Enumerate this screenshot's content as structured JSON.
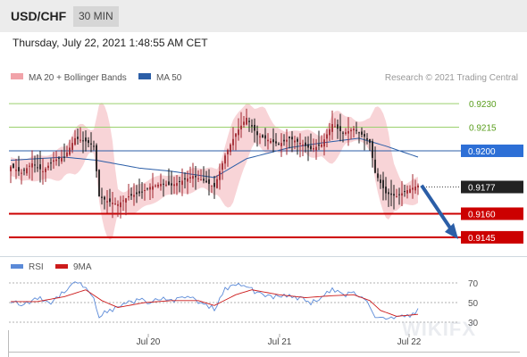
{
  "header": {
    "symbol": "USD/CHF",
    "timeframe": "30 MIN"
  },
  "timestamp": "Thursday, July 22, 2021 1:48:55 AM CET",
  "legend": {
    "bb_label": "MA 20 + Bollinger Bands",
    "ma50_label": "MA 50",
    "copyright": "Research © 2021 Trading Central",
    "rsi_label": "RSI",
    "ma9_label": "9MA"
  },
  "watermark": "WIKIFX",
  "colors": {
    "bullish_candle": "#a0252e",
    "bearish_candle": "#1a1a1a",
    "bollinger_fill": "#f6c6c9",
    "ma50": "#2b5ea7",
    "target_line": "#cc0000",
    "resistance_line": "#9bd16e",
    "resistance_label": "#5a9e1d",
    "pivot": "#2d6fd6",
    "current_price_bg": "#222222",
    "arrow": "#2b5ea7",
    "rsi": "#5b8ad8",
    "rsi_ma": "#cc1a1a"
  },
  "chart_data": [
    {
      "type": "candlestick",
      "x_labels": [
        "Jul 20",
        "Jul 21",
        "Jul 22"
      ],
      "y_range": [
        0.9137,
        0.9238
      ],
      "current_price": 0.9177,
      "levels": [
        {
          "value": 0.923,
          "label": "0.9230",
          "kind": "resistance"
        },
        {
          "value": 0.9215,
          "label": "0.9215",
          "kind": "resistance"
        },
        {
          "value": 0.92,
          "label": "0.9200",
          "kind": "pivot"
        },
        {
          "value": 0.9177,
          "label": "0.9177",
          "kind": "current"
        },
        {
          "value": 0.916,
          "label": "0.9160",
          "kind": "target"
        },
        {
          "value": 0.9145,
          "label": "0.9145",
          "kind": "target"
        }
      ],
      "anchors": [
        [
          0,
          0.919
        ],
        [
          4,
          0.9186
        ],
        [
          8,
          0.9192
        ],
        [
          12,
          0.9187
        ],
        [
          16,
          0.9194
        ],
        [
          20,
          0.9196
        ],
        [
          24,
          0.9208
        ],
        [
          28,
          0.9206
        ],
        [
          31,
          0.9203
        ],
        [
          33,
          0.9171
        ],
        [
          36,
          0.9168
        ],
        [
          40,
          0.9166
        ],
        [
          44,
          0.9171
        ],
        [
          48,
          0.9173
        ],
        [
          52,
          0.9177
        ],
        [
          56,
          0.9179
        ],
        [
          60,
          0.9178
        ],
        [
          64,
          0.9181
        ],
        [
          68,
          0.9184
        ],
        [
          72,
          0.9181
        ],
        [
          76,
          0.9177
        ],
        [
          80,
          0.9197
        ],
        [
          84,
          0.9211
        ],
        [
          88,
          0.9221
        ],
        [
          92,
          0.921
        ],
        [
          96,
          0.9207
        ],
        [
          100,
          0.9204
        ],
        [
          104,
          0.9208
        ],
        [
          108,
          0.9205
        ],
        [
          112,
          0.9201
        ],
        [
          116,
          0.9204
        ],
        [
          120,
          0.9217
        ],
        [
          124,
          0.9211
        ],
        [
          128,
          0.9214
        ],
        [
          132,
          0.9209
        ],
        [
          134,
          0.9205
        ],
        [
          136,
          0.9186
        ],
        [
          140,
          0.9173
        ],
        [
          144,
          0.9171
        ],
        [
          148,
          0.9175
        ],
        [
          152,
          0.9178
        ]
      ],
      "ma50": [
        [
          0,
          0.9194
        ],
        [
          20,
          0.9196
        ],
        [
          32,
          0.9194
        ],
        [
          48,
          0.9189
        ],
        [
          60,
          0.9187
        ],
        [
          76,
          0.9183
        ],
        [
          88,
          0.9195
        ],
        [
          104,
          0.9202
        ],
        [
          116,
          0.9205
        ],
        [
          130,
          0.9208
        ],
        [
          140,
          0.9203
        ],
        [
          152,
          0.9196
        ]
      ],
      "forecast_arrow": {
        "from": 0.9178,
        "to": 0.9145
      }
    },
    {
      "type": "line",
      "title": "RSI",
      "y_ticks": [
        70,
        50,
        30
      ],
      "y_range": [
        20,
        80
      ],
      "rsi_anchors": [
        [
          0,
          52
        ],
        [
          5,
          47
        ],
        [
          10,
          55
        ],
        [
          15,
          50
        ],
        [
          20,
          62
        ],
        [
          24,
          72
        ],
        [
          28,
          65
        ],
        [
          31,
          55
        ],
        [
          33,
          35
        ],
        [
          36,
          42
        ],
        [
          40,
          44
        ],
        [
          44,
          50
        ],
        [
          48,
          53
        ],
        [
          52,
          49
        ],
        [
          56,
          55
        ],
        [
          60,
          52
        ],
        [
          64,
          55
        ],
        [
          68,
          54
        ],
        [
          72,
          47
        ],
        [
          76,
          44
        ],
        [
          80,
          63
        ],
        [
          84,
          68
        ],
        [
          88,
          66
        ],
        [
          92,
          60
        ],
        [
          96,
          57
        ],
        [
          100,
          55
        ],
        [
          104,
          58
        ],
        [
          108,
          54
        ],
        [
          112,
          50
        ],
        [
          116,
          55
        ],
        [
          120,
          63
        ],
        [
          124,
          57
        ],
        [
          128,
          60
        ],
        [
          132,
          55
        ],
        [
          134,
          46
        ],
        [
          136,
          36
        ],
        [
          140,
          33
        ],
        [
          144,
          37
        ],
        [
          148,
          36
        ],
        [
          152,
          42
        ]
      ],
      "ma9_anchors": [
        [
          0,
          51
        ],
        [
          10,
          51
        ],
        [
          20,
          56
        ],
        [
          28,
          63
        ],
        [
          34,
          52
        ],
        [
          40,
          45
        ],
        [
          50,
          50
        ],
        [
          60,
          52
        ],
        [
          70,
          52
        ],
        [
          76,
          47
        ],
        [
          84,
          58
        ],
        [
          90,
          63
        ],
        [
          100,
          58
        ],
        [
          110,
          55
        ],
        [
          120,
          57
        ],
        [
          128,
          58
        ],
        [
          134,
          52
        ],
        [
          138,
          42
        ],
        [
          144,
          36
        ],
        [
          152,
          38
        ]
      ]
    }
  ]
}
